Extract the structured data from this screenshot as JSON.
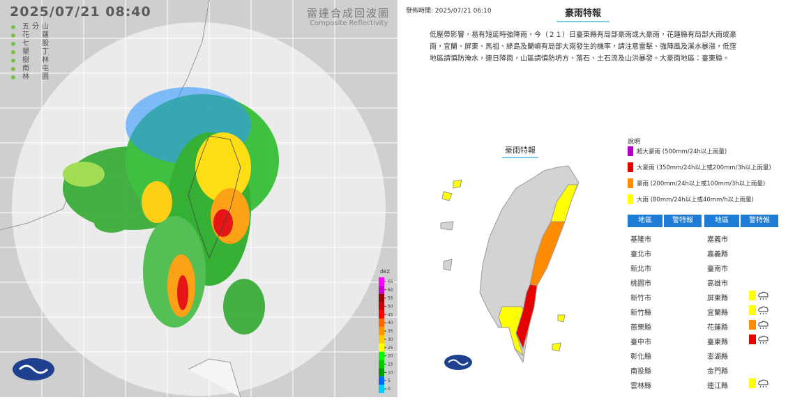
{
  "radar": {
    "timestamp": "2025/07/21 08:40",
    "title": "雷達合成回波圖",
    "subtitle": "Composite Reflectivity",
    "stations": [
      "五分山",
      "花蓮",
      "七股",
      "墾丁",
      "樹林",
      "南屯",
      "林園"
    ],
    "colorbar": {
      "unit": "dBZ",
      "ticks": [
        65,
        60,
        55,
        50,
        45,
        40,
        35,
        30,
        25,
        20,
        15,
        10,
        5,
        0
      ],
      "colors": [
        "#ff00ff",
        "#cc00cc",
        "#990000",
        "#cc0000",
        "#ff0000",
        "#ff6600",
        "#ff9900",
        "#ffcc00",
        "#ffff00",
        "#00ff00",
        "#00cc00",
        "#009900",
        "#0066ff",
        "#00ccff"
      ]
    }
  },
  "warning": {
    "issued": "發佈時間: 2025/07/21 06:10",
    "title": "豪雨特報",
    "description": "低壓帶影響，易有短延時強降雨，今（２１）日臺東縣有局部豪雨或大豪雨，花蓮縣有局部大雨或豪雨，宜蘭、屏東、馬祖、綠島及蘭嶼有局部大雨發生的機率，請注意雷擊、強陣風及溪水暴漲，低窪地區請慎防淹水，連日降雨，山區請慎防坍方、落石、土石流及山洪暴發。大豪雨地區：臺東縣。",
    "map_label": "豪雨特報",
    "legend_title": "說明",
    "legend": [
      {
        "label": "超大豪雨 (500mm/24h以上雨量)",
        "color": "#b000c8"
      },
      {
        "label": "大豪雨 (350mm/24h以上或200mm/3h以上雨量)",
        "color": "#e60000"
      },
      {
        "label": "豪雨 (200mm/24h以上或100mm/3h以上雨量)",
        "color": "#ff8c00"
      },
      {
        "label": "大雨 (80mm/24h以上或40mm/h以上雨量)",
        "color": "#ffff00"
      }
    ],
    "headers": [
      "地區",
      "警特報",
      "地區",
      "警特報"
    ],
    "left": [
      {
        "name": "基隆市"
      },
      {
        "name": "臺北市"
      },
      {
        "name": "新北市"
      },
      {
        "name": "桃園市"
      },
      {
        "name": "新竹市"
      },
      {
        "name": "新竹縣"
      },
      {
        "name": "苗栗縣"
      },
      {
        "name": "臺中市"
      },
      {
        "name": "彰化縣"
      },
      {
        "name": "南投縣"
      },
      {
        "name": "雲林縣"
      }
    ],
    "right": [
      {
        "name": "嘉義市"
      },
      {
        "name": "嘉義縣"
      },
      {
        "name": "臺南市"
      },
      {
        "name": "高雄市"
      },
      {
        "name": "屏東縣",
        "warning": "#ffff00"
      },
      {
        "name": "宜蘭縣",
        "warning": "#ffff00"
      },
      {
        "name": "花蓮縣",
        "warning": "#ff8c00"
      },
      {
        "name": "臺東縣",
        "warning": "#e60000"
      },
      {
        "name": "澎湖縣"
      },
      {
        "name": "金門縣"
      },
      {
        "name": "連江縣",
        "warning": "#ffff00"
      }
    ]
  }
}
